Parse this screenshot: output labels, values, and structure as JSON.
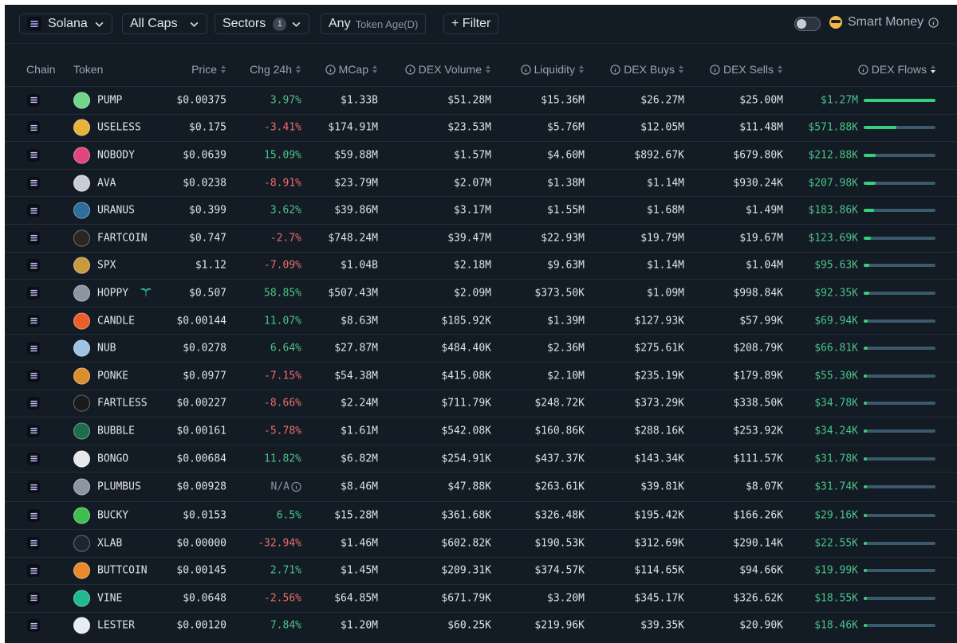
{
  "toolbar": {
    "chain_select": "Solana",
    "caps_select": "All Caps",
    "sectors_label": "Sectors",
    "sectors_count": "1",
    "age_value": "Any",
    "age_label": "Token Age(D)",
    "filter_label": "+ Filter",
    "smart_money_label": "Smart Money",
    "smart_money_on": false
  },
  "columns": {
    "chain": "Chain",
    "token": "Token",
    "price": "Price",
    "chg": "Chg 24h",
    "mcap": "MCap",
    "dex_volume": "DEX Volume",
    "liquidity": "Liquidity",
    "dex_buys": "DEX Buys",
    "dex_sells": "DEX Sells",
    "dex_flows": "DEX Flows"
  },
  "rows": [
    {
      "token": "PUMP",
      "icon": "pill-icon",
      "icon_color": "#6fd68a",
      "price": "$0.00375",
      "chg": "3.97%",
      "dir": "pos",
      "mcap": "$1.33B",
      "volume": "$51.28M",
      "liquidity": "$15.36M",
      "buys": "$26.27M",
      "sells": "$25.00M",
      "flows": "$1.27M",
      "flow_frac": 1.0
    },
    {
      "token": "USELESS",
      "icon": "coin-icon",
      "icon_color": "#e7b338",
      "price": "$0.175",
      "chg": "-3.41%",
      "dir": "neg",
      "mcap": "$174.91M",
      "volume": "$23.53M",
      "liquidity": "$5.76M",
      "buys": "$12.05M",
      "sells": "$11.48M",
      "flows": "$571.88K",
      "flow_frac": 0.45
    },
    {
      "token": "NOBODY",
      "icon": "face-icon",
      "icon_color": "#e0457b",
      "price": "$0.0639",
      "chg": "15.09%",
      "dir": "pos",
      "mcap": "$59.88M",
      "volume": "$1.57M",
      "liquidity": "$4.60M",
      "buys": "$892.67K",
      "sells": "$679.80K",
      "flows": "$212.88K",
      "flow_frac": 0.17
    },
    {
      "token": "AVA",
      "icon": "avatar-icon",
      "icon_color": "#c9ced6",
      "price": "$0.0238",
      "chg": "-8.91%",
      "dir": "neg",
      "mcap": "$23.79M",
      "volume": "$2.07M",
      "liquidity": "$1.38M",
      "buys": "$1.14M",
      "sells": "$930.24K",
      "flows": "$207.98K",
      "flow_frac": 0.165
    },
    {
      "token": "URANUS",
      "icon": "planet-icon",
      "icon_color": "#2d6f9a",
      "price": "$0.399",
      "chg": "3.62%",
      "dir": "pos",
      "mcap": "$39.86M",
      "volume": "$3.17M",
      "liquidity": "$1.55M",
      "buys": "$1.68M",
      "sells": "$1.49M",
      "flows": "$183.86K",
      "flow_frac": 0.145
    },
    {
      "token": "FARTCOIN",
      "icon": "dark-coin-icon",
      "icon_color": "#2a2620",
      "price": "$0.747",
      "chg": "-2.7%",
      "dir": "neg",
      "mcap": "$748.24M",
      "volume": "$39.47M",
      "liquidity": "$22.93M",
      "buys": "$19.79M",
      "sells": "$19.67M",
      "flows": "$123.69K",
      "flow_frac": 0.1
    },
    {
      "token": "SPX",
      "icon": "face-icon",
      "icon_color": "#c89a3e",
      "price": "$1.12",
      "chg": "-7.09%",
      "dir": "neg",
      "mcap": "$1.04B",
      "volume": "$2.18M",
      "liquidity": "$9.63M",
      "buys": "$1.14M",
      "sells": "$1.04M",
      "flows": "$95.63K",
      "flow_frac": 0.075
    },
    {
      "token": "HOPPY",
      "icon": "diamond-icon",
      "icon_color": "#8c96a3",
      "price": "$0.507",
      "chg": "58.85%",
      "dir": "pos",
      "mcap": "$507.43M",
      "volume": "$2.09M",
      "liquidity": "$373.50K",
      "buys": "$1.09M",
      "sells": "$998.84K",
      "flows": "$92.35K",
      "flow_frac": 0.073
    },
    {
      "token": "CANDLE",
      "icon": "candle-icon",
      "icon_color": "#e85f2c",
      "price": "$0.00144",
      "chg": "11.07%",
      "dir": "pos",
      "mcap": "$8.63M",
      "volume": "$185.92K",
      "liquidity": "$1.39M",
      "buys": "$127.93K",
      "sells": "$57.99K",
      "flows": "$69.94K",
      "flow_frac": 0.055
    },
    {
      "token": "NUB",
      "icon": "face-icon",
      "icon_color": "#9fc3e6",
      "price": "$0.0278",
      "chg": "6.64%",
      "dir": "pos",
      "mcap": "$27.87M",
      "volume": "$484.40K",
      "liquidity": "$2.36M",
      "buys": "$275.61K",
      "sells": "$208.79K",
      "flows": "$66.81K",
      "flow_frac": 0.053
    },
    {
      "token": "PONKE",
      "icon": "face-icon",
      "icon_color": "#d9902a",
      "price": "$0.0977",
      "chg": "-7.15%",
      "dir": "neg",
      "mcap": "$54.38M",
      "volume": "$415.08K",
      "liquidity": "$2.10M",
      "buys": "$235.19K",
      "sells": "$179.89K",
      "flows": "$55.30K",
      "flow_frac": 0.044
    },
    {
      "token": "FARTLESS",
      "icon": "dark-coin-icon",
      "icon_color": "#1a1a1a",
      "price": "$0.00227",
      "chg": "-8.66%",
      "dir": "neg",
      "mcap": "$2.24M",
      "volume": "$711.79K",
      "liquidity": "$248.72K",
      "buys": "$373.29K",
      "sells": "$338.50K",
      "flows": "$34.78K",
      "flow_frac": 0.027
    },
    {
      "token": "BUBBLE",
      "icon": "bubble-icon",
      "icon_color": "#1f6b4b",
      "price": "$0.00161",
      "chg": "-5.78%",
      "dir": "neg",
      "mcap": "$1.61M",
      "volume": "$542.08K",
      "liquidity": "$160.86K",
      "buys": "$288.16K",
      "sells": "$253.92K",
      "flows": "$34.24K",
      "flow_frac": 0.027
    },
    {
      "token": "BONGO",
      "icon": "hand-icon",
      "icon_color": "#e6e8ea",
      "price": "$0.00684",
      "chg": "11.82%",
      "dir": "pos",
      "mcap": "$6.82M",
      "volume": "$254.91K",
      "liquidity": "$437.37K",
      "buys": "$143.34K",
      "sells": "$111.57K",
      "flows": "$31.78K",
      "flow_frac": 0.025
    },
    {
      "token": "PLUMBUS",
      "icon": "diamond-icon",
      "icon_color": "#8c96a3",
      "price": "$0.00928",
      "chg": "N/A",
      "dir": "na",
      "mcap": "$8.46M",
      "volume": "$47.88K",
      "liquidity": "$263.61K",
      "buys": "$39.81K",
      "sells": "$8.07K",
      "flows": "$31.74K",
      "flow_frac": 0.025
    },
    {
      "token": "BUCKY",
      "icon": "frog-icon",
      "icon_color": "#3fbf4f",
      "price": "$0.0153",
      "chg": "6.5%",
      "dir": "pos",
      "mcap": "$15.28M",
      "volume": "$361.68K",
      "liquidity": "$326.48K",
      "buys": "$195.42K",
      "sells": "$166.26K",
      "flows": "$29.16K",
      "flow_frac": 0.023
    },
    {
      "token": "XLAB",
      "icon": "x-icon",
      "icon_color": "#1c2530",
      "price": "$0.00000",
      "chg": "-32.94%",
      "dir": "neg",
      "mcap": "$1.46M",
      "volume": "$602.82K",
      "liquidity": "$190.53K",
      "buys": "$312.69K",
      "sells": "$290.14K",
      "flows": "$22.55K",
      "flow_frac": 0.018
    },
    {
      "token": "BUTTCOIN",
      "icon": "butt-icon",
      "icon_color": "#e88a2a",
      "price": "$0.00145",
      "chg": "2.71%",
      "dir": "pos",
      "mcap": "$1.45M",
      "volume": "$209.31K",
      "liquidity": "$374.57K",
      "buys": "$114.65K",
      "sells": "$94.66K",
      "flows": "$19.99K",
      "flow_frac": 0.016
    },
    {
      "token": "VINE",
      "icon": "vine-icon",
      "icon_color": "#1fb98f",
      "price": "$0.0648",
      "chg": "-2.56%",
      "dir": "neg",
      "mcap": "$64.85M",
      "volume": "$671.79K",
      "liquidity": "$3.20M",
      "buys": "$345.17K",
      "sells": "$326.62K",
      "flows": "$18.55K",
      "flow_frac": 0.015
    },
    {
      "token": "LESTER",
      "icon": "avatar-icon",
      "icon_color": "#e9edf2",
      "price": "$0.00120",
      "chg": "7.84%",
      "dir": "pos",
      "mcap": "$1.20M",
      "volume": "$60.25K",
      "liquidity": "$219.96K",
      "buys": "$39.35K",
      "sells": "$20.90K",
      "flows": "$18.46K",
      "flow_frac": 0.015
    }
  ]
}
